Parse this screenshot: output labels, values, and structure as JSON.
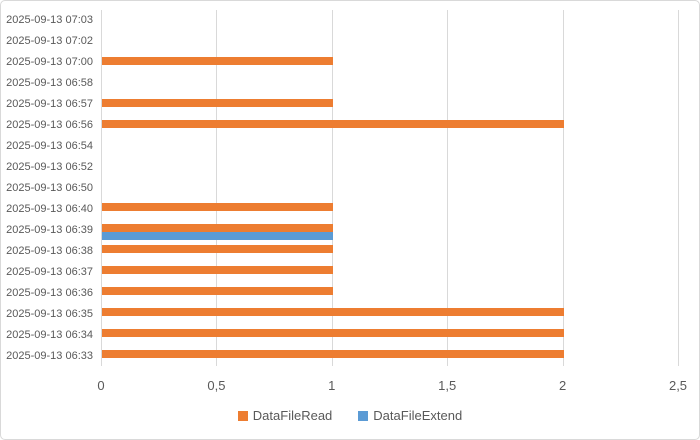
{
  "chart_data": {
    "type": "bar",
    "orientation": "horizontal",
    "title": "",
    "categories": [
      "2025-09-13 07:03",
      "2025-09-13 07:02",
      "2025-09-13 07:00",
      "2025-09-13 06:58",
      "2025-09-13 06:57",
      "2025-09-13 06:56",
      "2025-09-13 06:54",
      "2025-09-13 06:52",
      "2025-09-13 06:50",
      "2025-09-13 06:40",
      "2025-09-13 06:39",
      "2025-09-13 06:38",
      "2025-09-13 06:37",
      "2025-09-13 06:36",
      "2025-09-13 06:35",
      "2025-09-13 06:34",
      "2025-09-13 06:33"
    ],
    "series": [
      {
        "name": "DataFileRead",
        "color": "#ED7D31",
        "values": [
          0,
          0,
          1,
          0,
          1,
          2,
          0,
          0,
          0,
          1,
          1,
          1,
          1,
          1,
          2,
          2,
          2
        ]
      },
      {
        "name": "DataFileExtend",
        "color": "#5B9BD5",
        "values": [
          0,
          0,
          0,
          0,
          0,
          0,
          0,
          0,
          0,
          0,
          1,
          0,
          0,
          0,
          0,
          0,
          0
        ]
      }
    ],
    "xlim": [
      0,
      2.5
    ],
    "xticks": [
      {
        "value": 0,
        "label": "0"
      },
      {
        "value": 0.5,
        "label": "0,5"
      },
      {
        "value": 1,
        "label": "1"
      },
      {
        "value": 1.5,
        "label": "1,5"
      },
      {
        "value": 2,
        "label": "2"
      },
      {
        "value": 2.5,
        "label": "2,5"
      }
    ],
    "grid": true,
    "legend_position": "bottom"
  },
  "colors": {
    "background": "#FFFFFF",
    "border": "#D9D9D9",
    "gridline": "#D9D9D9",
    "axis_text": "#595959",
    "series_read": "#ED7D31",
    "series_extend": "#5B9BD5"
  }
}
